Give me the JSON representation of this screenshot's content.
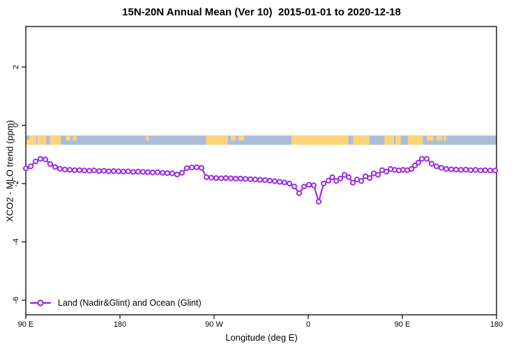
{
  "chart_data": {
    "type": "line",
    "title": "15N-20N Annual Mean (Ver 10)  2015-01-01 to 2020-12-18",
    "xlabel": "Longitude (deg E)",
    "ylabel": "XCO2 - MLO trend (ppm)",
    "ylim": [
      -6.5,
      3.4
    ],
    "grid": false,
    "legend_position": "bottom-left-inside",
    "colors": {
      "line": "#9D2FE0",
      "marker_fill": "#ffffff",
      "ocean": "#AABED9",
      "land": "#FCD57B",
      "axis": "#000000"
    },
    "x_ticks": [
      {
        "deg": 0,
        "label": "90 E"
      },
      {
        "deg": 90,
        "label": "180"
      },
      {
        "deg": 180,
        "label": "90 W"
      },
      {
        "deg": 270,
        "label": "0"
      },
      {
        "deg": 360,
        "label": "90 E"
      },
      {
        "deg": 450,
        "label": "180"
      }
    ],
    "y_ticks": [
      {
        "v": 2,
        "label": "2"
      },
      {
        "v": 0,
        "label": "0"
      },
      {
        "v": -2,
        "label": "-2"
      },
      {
        "v": -4,
        "label": "-4"
      },
      {
        "v": -6,
        "label": "-6"
      }
    ],
    "map_band": {
      "top": -0.35,
      "bottom": -0.67,
      "land_segments": [
        {
          "f": 0,
          "t": 3.3,
          "va": "bottom"
        },
        {
          "f": 3.3,
          "t": 10,
          "va": "full"
        },
        {
          "f": 11,
          "t": 19.5,
          "va": "full"
        },
        {
          "f": 23,
          "t": 33.5,
          "va": "full"
        },
        {
          "f": 38.5,
          "t": 42.5,
          "va": "top"
        },
        {
          "f": 45,
          "t": 48.5,
          "va": "top"
        },
        {
          "f": 115,
          "t": 117.5,
          "va": "top"
        },
        {
          "f": 172.5,
          "t": 193,
          "va": "full"
        },
        {
          "f": 196,
          "t": 200.5,
          "va": "top"
        },
        {
          "f": 203.5,
          "t": 208.5,
          "va": "top"
        },
        {
          "f": 254,
          "t": 308.5,
          "va": "full"
        },
        {
          "f": 313,
          "t": 328.5,
          "va": "full"
        },
        {
          "f": 343,
          "t": 352,
          "va": "full"
        },
        {
          "f": 353.5,
          "t": 358.5,
          "va": "full"
        },
        {
          "f": 365.5,
          "t": 379.5,
          "va": "full"
        },
        {
          "f": 383.5,
          "t": 389.5,
          "va": "top"
        },
        {
          "f": 392.5,
          "t": 398,
          "va": "top"
        },
        {
          "f": 399.5,
          "t": 402,
          "va": "top"
        }
      ]
    },
    "series": [
      {
        "name": "Land (Nadir&Glint) and Ocean (Glint)",
        "points": [
          [
            0,
            -1.48
          ],
          [
            4.7,
            -1.41
          ],
          [
            9.3,
            -1.24
          ],
          [
            14,
            -1.15
          ],
          [
            18.7,
            -1.17
          ],
          [
            23.3,
            -1.33
          ],
          [
            28,
            -1.43
          ],
          [
            32.7,
            -1.49
          ],
          [
            37.3,
            -1.52
          ],
          [
            42,
            -1.53
          ],
          [
            46.7,
            -1.54
          ],
          [
            51.3,
            -1.54
          ],
          [
            56,
            -1.55
          ],
          [
            60.7,
            -1.56
          ],
          [
            65.3,
            -1.55
          ],
          [
            70,
            -1.57
          ],
          [
            74.7,
            -1.56
          ],
          [
            79.3,
            -1.58
          ],
          [
            84,
            -1.57
          ],
          [
            88.7,
            -1.58
          ],
          [
            93.3,
            -1.59
          ],
          [
            98,
            -1.58
          ],
          [
            102.7,
            -1.6
          ],
          [
            107.3,
            -1.59
          ],
          [
            112,
            -1.6
          ],
          [
            116.7,
            -1.61
          ],
          [
            121.3,
            -1.62
          ],
          [
            126,
            -1.61
          ],
          [
            130.7,
            -1.63
          ],
          [
            135.3,
            -1.64
          ],
          [
            140,
            -1.65
          ],
          [
            144.7,
            -1.69
          ],
          [
            149.3,
            -1.63
          ],
          [
            154,
            -1.47
          ],
          [
            158.7,
            -1.45
          ],
          [
            163.3,
            -1.44
          ],
          [
            168,
            -1.46
          ],
          [
            172.7,
            -1.78
          ],
          [
            177.3,
            -1.8
          ],
          [
            182,
            -1.81
          ],
          [
            186.7,
            -1.82
          ],
          [
            191.3,
            -1.81
          ],
          [
            196,
            -1.82
          ],
          [
            200.7,
            -1.83
          ],
          [
            205.3,
            -1.83
          ],
          [
            210,
            -1.84
          ],
          [
            214.7,
            -1.85
          ],
          [
            219.3,
            -1.86
          ],
          [
            224,
            -1.87
          ],
          [
            228.7,
            -1.88
          ],
          [
            233.3,
            -1.9
          ],
          [
            238,
            -1.92
          ],
          [
            242.7,
            -1.94
          ],
          [
            247.3,
            -1.96
          ],
          [
            252,
            -2.0
          ],
          [
            256.7,
            -2.1
          ],
          [
            261.3,
            -2.33
          ],
          [
            266,
            -2.1
          ],
          [
            270.7,
            -2.04
          ],
          [
            275.3,
            -2.06
          ],
          [
            280,
            -2.62
          ],
          [
            284.7,
            -2.0
          ],
          [
            289.3,
            -1.9
          ],
          [
            293,
            -1.78
          ],
          [
            296.7,
            -1.91
          ],
          [
            300.7,
            -1.83
          ],
          [
            304.7,
            -1.7
          ],
          [
            308.7,
            -1.78
          ],
          [
            312.7,
            -1.97
          ],
          [
            316.7,
            -1.86
          ],
          [
            320.7,
            -1.91
          ],
          [
            324.7,
            -1.75
          ],
          [
            328.7,
            -1.81
          ],
          [
            332.7,
            -1.65
          ],
          [
            336.7,
            -1.7
          ],
          [
            340.7,
            -1.54
          ],
          [
            344.7,
            -1.59
          ],
          [
            348.7,
            -1.5
          ],
          [
            352.7,
            -1.53
          ],
          [
            356.7,
            -1.55
          ],
          [
            360.7,
            -1.53
          ],
          [
            364.7,
            -1.54
          ],
          [
            368.7,
            -1.5
          ],
          [
            372,
            -1.38
          ],
          [
            375.3,
            -1.28
          ],
          [
            378.7,
            -1.15
          ],
          [
            383.3,
            -1.15
          ],
          [
            388,
            -1.32
          ],
          [
            392.7,
            -1.41
          ],
          [
            397.3,
            -1.46
          ],
          [
            402,
            -1.5
          ],
          [
            406.7,
            -1.51
          ],
          [
            411.3,
            -1.52
          ],
          [
            416,
            -1.53
          ],
          [
            420.7,
            -1.52
          ],
          [
            425.3,
            -1.54
          ],
          [
            430,
            -1.53
          ],
          [
            434.7,
            -1.55
          ],
          [
            439.3,
            -1.54
          ],
          [
            444,
            -1.55
          ],
          [
            448.7,
            -1.55
          ]
        ]
      }
    ]
  }
}
